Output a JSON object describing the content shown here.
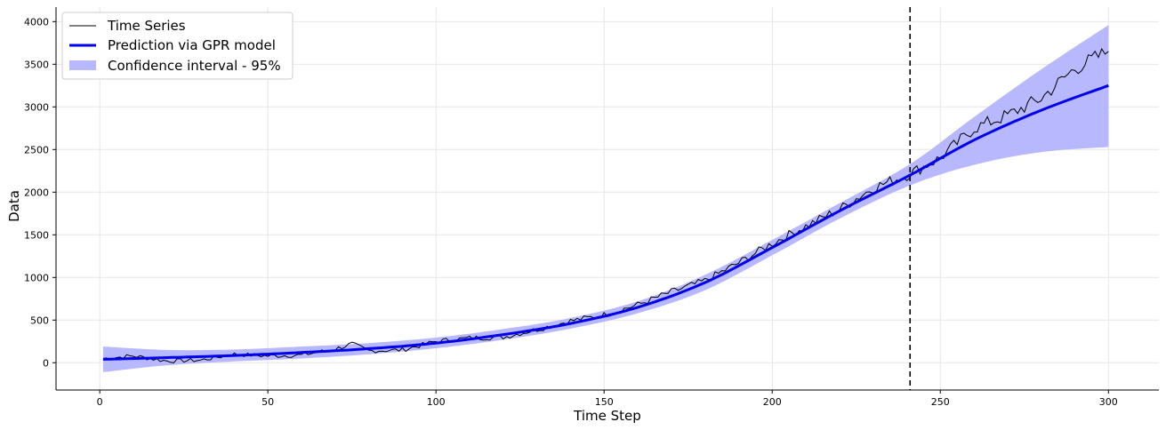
{
  "chart_data": {
    "type": "line",
    "xlabel": "Time Step",
    "ylabel": "Data",
    "xlim": [
      -13,
      315
    ],
    "ylim": [
      -320,
      4170
    ],
    "xticks": [
      0,
      50,
      100,
      150,
      200,
      250,
      300
    ],
    "yticks": [
      0,
      500,
      1000,
      1500,
      2000,
      2500,
      3000,
      3500,
      4000
    ],
    "grid": true,
    "legend_position": "top-left",
    "train_test_split_x": 241,
    "colors": {
      "time_series": "#000000",
      "prediction": "#0000ee",
      "confidence": "#b8b8ff",
      "split_line": "#000000"
    },
    "series": [
      {
        "name": "Time Series",
        "x": [
          1,
          10,
          20,
          30,
          40,
          50,
          60,
          70,
          75,
          80,
          90,
          100,
          110,
          120,
          130,
          140,
          150,
          160,
          170,
          180,
          190,
          200,
          210,
          220,
          230,
          240,
          250,
          260,
          270,
          280,
          290,
          300
        ],
        "y": [
          50,
          80,
          20,
          30,
          100,
          80,
          90,
          160,
          220,
          140,
          150,
          250,
          290,
          300,
          390,
          490,
          560,
          680,
          830,
          960,
          1170,
          1400,
          1600,
          1800,
          2050,
          2200,
          2400,
          2750,
          2900,
          3100,
          3450,
          3650
        ]
      },
      {
        "name": "Prediction via GPR model",
        "x": [
          1,
          20,
          40,
          60,
          80,
          100,
          120,
          140,
          160,
          180,
          200,
          220,
          241,
          260,
          280,
          300
        ],
        "y": [
          40,
          60,
          85,
          120,
          165,
          230,
          330,
          460,
          650,
          940,
          1350,
          1780,
          2200,
          2610,
          2960,
          3250
        ]
      },
      {
        "name": "Confidence interval - 95%",
        "x": [
          1,
          20,
          40,
          60,
          80,
          100,
          120,
          140,
          160,
          180,
          200,
          220,
          241,
          260,
          280,
          300
        ],
        "lower": [
          -110,
          -30,
          15,
          50,
          100,
          170,
          270,
          400,
          580,
          850,
          1260,
          1690,
          2080,
          2320,
          2470,
          2530
        ],
        "upper": [
          190,
          150,
          155,
          190,
          230,
          295,
          395,
          525,
          720,
          1030,
          1440,
          1870,
          2330,
          2880,
          3440,
          3960
        ]
      }
    ]
  }
}
